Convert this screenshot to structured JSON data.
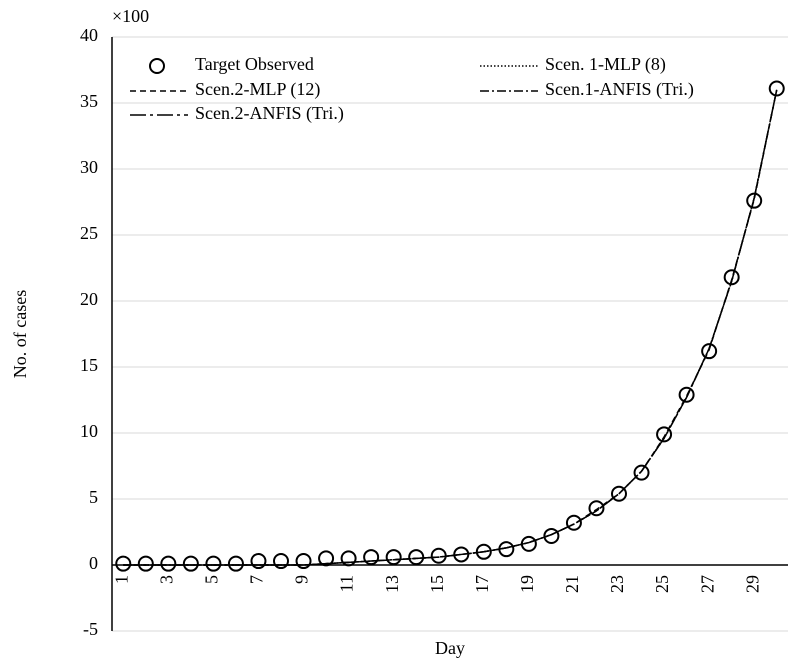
{
  "chart_data": {
    "type": "line",
    "y_label": "No. of cases",
    "y_unit_label": "×100",
    "x_label": "Day",
    "categories": [
      "1",
      null,
      "3",
      null,
      "5",
      null,
      "7",
      null,
      "9",
      null,
      "11",
      null,
      "13",
      null,
      "15",
      null,
      "17",
      null,
      "19",
      null,
      "21",
      null,
      "23",
      null,
      "25",
      null,
      "27",
      null,
      "29",
      null
    ],
    "ylim": [
      -5,
      40
    ],
    "yticks": [
      -5,
      0,
      5,
      10,
      15,
      20,
      25,
      30,
      35,
      40
    ],
    "grid": true,
    "series": [
      {
        "name": "Target Observed",
        "color": "#000000",
        "style": "markers",
        "values": [
          0.1,
          0.1,
          0.1,
          0.1,
          0.1,
          0.1,
          0.3,
          0.3,
          0.3,
          0.5,
          0.5,
          0.6,
          0.6,
          0.6,
          0.7,
          0.8,
          1.0,
          1.2,
          1.6,
          2.2,
          3.2,
          4.3,
          5.4,
          7.0,
          9.9,
          12.9,
          16.2,
          21.8,
          27.6,
          36.1
        ]
      },
      {
        "name": "Scen. 1-MLP (8)",
        "color": "#000000",
        "style": "dotted",
        "values": [
          0,
          0,
          0,
          0,
          0,
          0,
          0,
          0,
          0,
          0.1,
          0.2,
          0.3,
          0.4,
          0.5,
          0.6,
          0.8,
          1.0,
          1.3,
          1.7,
          2.3,
          3.1,
          4.1,
          5.4,
          7.1,
          9.6,
          12.7,
          16.4,
          21.5,
          27.8,
          36.0
        ]
      },
      {
        "name": "Scen.2-MLP (12)",
        "color": "#000000",
        "style": "dashed",
        "values": [
          0,
          0,
          0,
          0,
          0,
          0,
          0,
          0,
          0,
          0.1,
          0.2,
          0.3,
          0.4,
          0.5,
          0.6,
          0.8,
          1.0,
          1.3,
          1.7,
          2.3,
          3.1,
          4.2,
          5.4,
          7.1,
          9.7,
          12.8,
          16.3,
          21.6,
          27.7,
          36.0
        ]
      },
      {
        "name": "Scen.1-ANFIS (Tri.)",
        "color": "#000000",
        "style": "dash-dot",
        "values": [
          0,
          0,
          0,
          0,
          0,
          0,
          0,
          0,
          0,
          0.1,
          0.2,
          0.3,
          0.4,
          0.5,
          0.6,
          0.8,
          1.0,
          1.3,
          1.7,
          2.3,
          3.1,
          4.1,
          5.4,
          7.1,
          9.6,
          12.7,
          16.4,
          21.5,
          27.8,
          36.0
        ]
      },
      {
        "name": "Scen.2-ANFIS (Tri.)",
        "color": "#000000",
        "style": "long-dash-dot",
        "values": [
          0,
          0,
          0,
          0,
          0,
          0,
          0,
          0,
          0,
          0.1,
          0.2,
          0.3,
          0.4,
          0.5,
          0.6,
          0.8,
          1.0,
          1.3,
          1.7,
          2.3,
          3.1,
          4.1,
          5.4,
          7.1,
          9.6,
          12.7,
          16.4,
          21.5,
          27.8,
          36.0
        ]
      }
    ]
  }
}
